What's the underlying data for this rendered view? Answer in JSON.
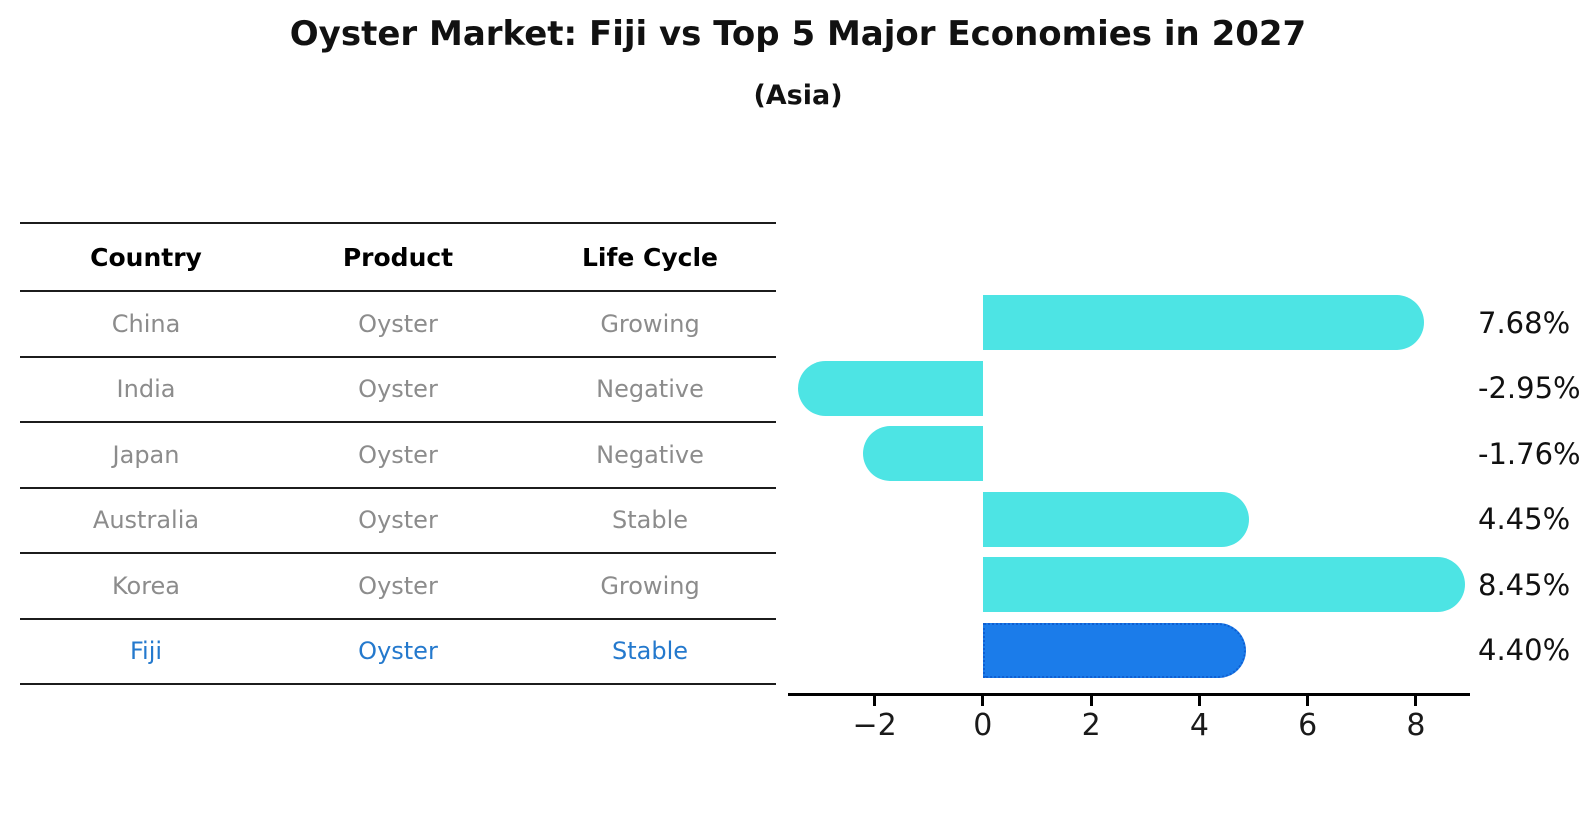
{
  "header": {
    "title": "Oyster Market: Fiji vs Top 5 Major Economies in 2027",
    "subtitle": "(Asia)"
  },
  "table": {
    "columns": [
      "Country",
      "Product",
      "Life Cycle"
    ],
    "rows": [
      {
        "country": "China",
        "product": "Oyster",
        "life_cycle": "Growing",
        "highlight": false
      },
      {
        "country": "India",
        "product": "Oyster",
        "life_cycle": "Negative",
        "highlight": false
      },
      {
        "country": "Japan",
        "product": "Oyster",
        "life_cycle": "Negative",
        "highlight": false
      },
      {
        "country": "Australia",
        "product": "Oyster",
        "life_cycle": "Stable",
        "highlight": false
      },
      {
        "country": "Korea",
        "product": "Oyster",
        "life_cycle": "Growing",
        "highlight": false
      },
      {
        "country": "Fiji",
        "product": "Oyster",
        "life_cycle": "Stable",
        "highlight": true
      }
    ]
  },
  "chart_data": {
    "type": "bar",
    "orientation": "horizontal",
    "title": "Oyster Market: Fiji vs Top 5 Major Economies in 2027",
    "subtitle": "(Asia)",
    "categories": [
      "China",
      "India",
      "Japan",
      "Australia",
      "Korea",
      "Fiji"
    ],
    "values": [
      7.68,
      -2.95,
      -1.76,
      4.45,
      8.45,
      4.4
    ],
    "value_labels": [
      "7.68%",
      "-2.95%",
      "-1.76%",
      "4.45%",
      "8.45%",
      "4.40%"
    ],
    "x_ticks": [
      -2,
      0,
      2,
      4,
      6,
      8
    ],
    "x_tick_labels": [
      "−2",
      "0",
      "2",
      "4",
      "6",
      "8"
    ],
    "xlim": [
      -3.6,
      9.0
    ],
    "grid": false,
    "legend": "none",
    "highlight_index": 5,
    "colors": {
      "bar": "#4DE4E4",
      "highlight_bar": "#1B7CEA",
      "highlight_border": "#0F5FD2",
      "highlight_text": "#2479CD",
      "axis": "#000000",
      "label": "#111111",
      "table_text": "#8C8C8C"
    }
  }
}
